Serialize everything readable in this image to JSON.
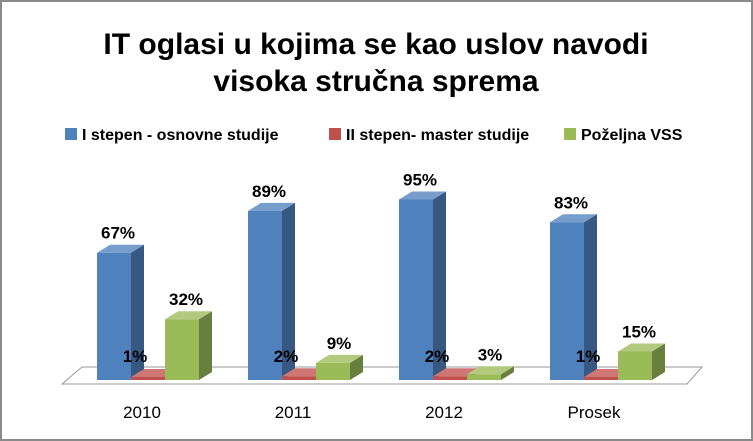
{
  "chart_data": {
    "type": "bar",
    "title_lines": [
      "IT oglasi u kojima se kao uslov navodi",
      "visoka stručna sprema"
    ],
    "categories": [
      "2010",
      "2011",
      "2012",
      "Prosek"
    ],
    "series": [
      {
        "name": "I stepen - osnovne studije",
        "values": [
          67,
          89,
          95,
          83
        ],
        "labels": [
          "67%",
          "89%",
          "95%",
          "83%"
        ],
        "color": "#4f81bd"
      },
      {
        "name": "II stepen- master studije",
        "values": [
          1,
          2,
          2,
          1
        ],
        "labels": [
          "1%",
          "2%",
          "2%",
          "1%"
        ],
        "color": "#c0504d"
      },
      {
        "name": "Poželjna VSS",
        "values": [
          32,
          9,
          3,
          15
        ],
        "labels": [
          "32%",
          "9%",
          "3%",
          "15%"
        ],
        "color": "#9bbb59"
      }
    ],
    "ylim": [
      0,
      100
    ],
    "grid": false,
    "legend_position": "top",
    "style": "3d-clustered"
  }
}
